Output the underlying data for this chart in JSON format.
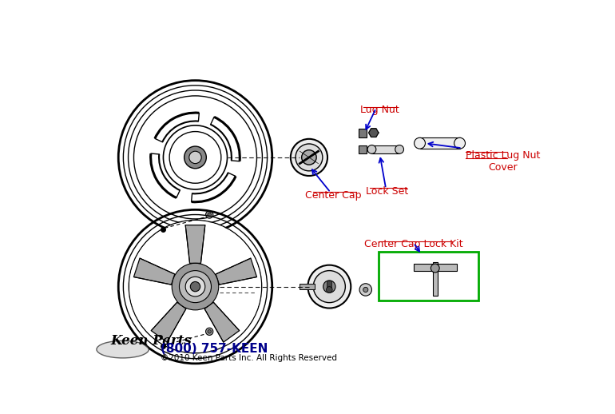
{
  "bg_color": "#ffffff",
  "labels": {
    "lug_nut": "Lug Nut",
    "center_cap": "Center Cap",
    "lock_set": "Lock Set",
    "plastic_cover": "Plastic Lug Nut\nCover",
    "center_cap_lock_kit": "Center Cap Lock Kit"
  },
  "label_color": "#cc0000",
  "arrow_color": "#0000cc",
  "footer_phone": "(800) 757-KEEN",
  "footer_copy": "©2010 Keen Parts Inc. All Rights Reserved",
  "footer_phone_color": "#00008b",
  "footer_copy_color": "#000000",
  "green_box_color": "#00aa00"
}
